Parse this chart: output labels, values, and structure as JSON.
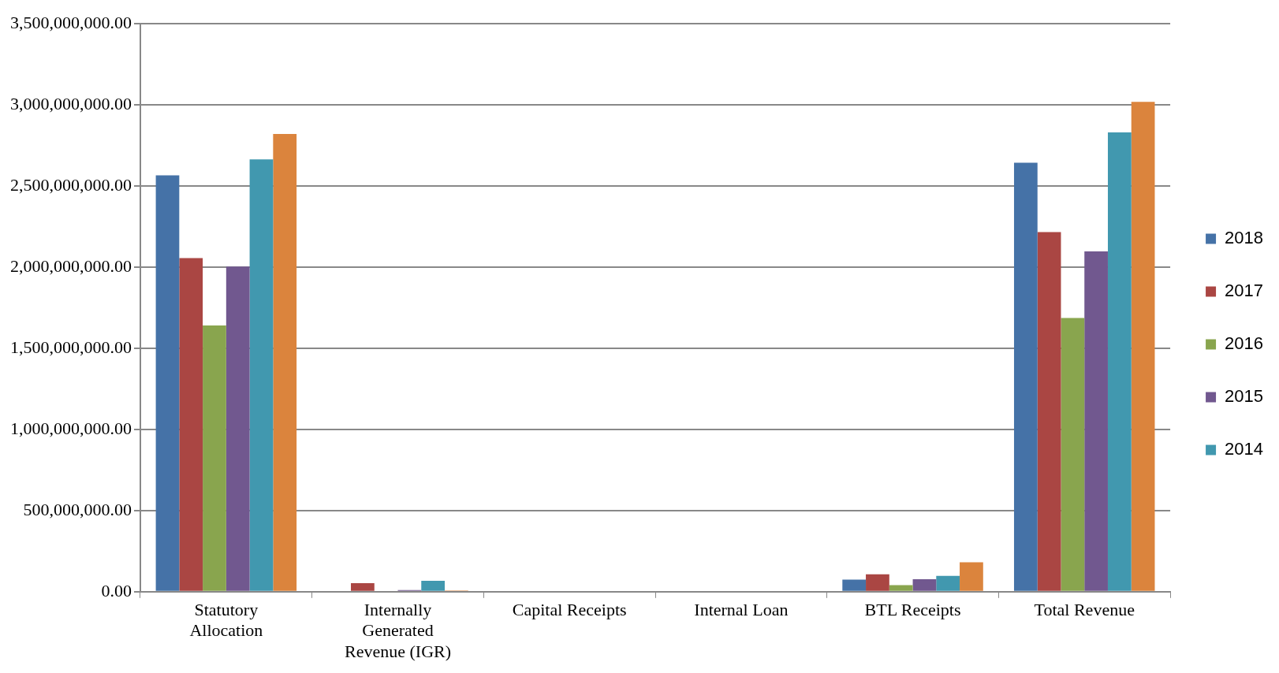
{
  "chart_data": {
    "type": "bar",
    "categories": [
      "Statutory Allocation",
      "Internally Generated Revenue (IGR)",
      "Capital Receipts",
      "Internal Loan",
      "BTL Receipts",
      "Total Revenue"
    ],
    "series": [
      {
        "name": "2018",
        "color": "#4572a7",
        "values": [
          2565000000,
          null,
          0,
          0,
          74000000,
          2643000000
        ]
      },
      {
        "name": "2017",
        "color": "#aa4643",
        "values": [
          2055000000,
          53000000,
          0,
          0,
          107000000,
          2216000000
        ]
      },
      {
        "name": "2016",
        "color": "#89a54e",
        "values": [
          1640000000,
          0,
          0,
          0,
          40000000,
          1686000000
        ]
      },
      {
        "name": "2015",
        "color": "#71588f",
        "values": [
          2003000000,
          10000000,
          0,
          0,
          77000000,
          2097000000
        ]
      },
      {
        "name": "2014",
        "color": "#4198af",
        "values": [
          2664000000,
          67000000,
          0,
          0,
          97000000,
          2830000000
        ]
      },
      {
        "color": "#db843d",
        "values": [
          2820000000,
          7000000,
          null,
          0,
          181000000,
          3018000000
        ]
      }
    ],
    "ylim": [
      0,
      3500000000
    ],
    "yticks": [
      {
        "value": 0,
        "label": "0.00"
      },
      {
        "value": 500000000,
        "label": "500,000,000.00"
      },
      {
        "value": 1000000000,
        "label": "1,000,000,000.00"
      },
      {
        "value": 1500000000,
        "label": "1,500,000,000.00"
      },
      {
        "value": 2000000000,
        "label": "2,000,000,000.00"
      },
      {
        "value": 2500000000,
        "label": "2,500,000,000.00"
      },
      {
        "value": 3000000000,
        "label": "3,000,000,000.00"
      },
      {
        "value": 3500000000,
        "label": "3,500,000,000.00"
      }
    ],
    "grid": "y",
    "legend": "right"
  }
}
